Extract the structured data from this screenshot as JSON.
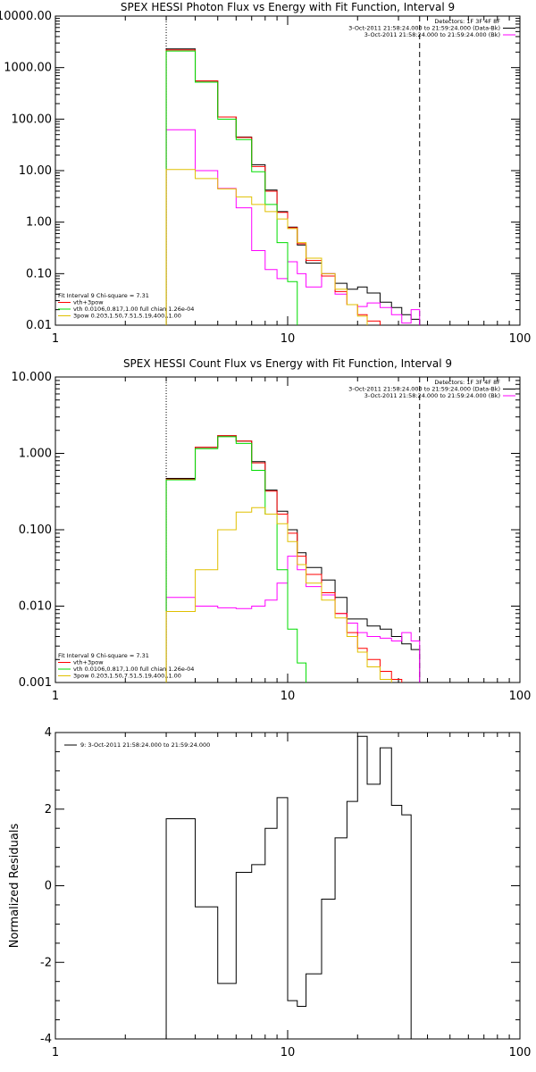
{
  "chart_data": [
    {
      "type": "line",
      "title": "SPEX HESSI Photon Flux vs Energy with Fit Function, Interval 9",
      "xscale": "log",
      "yscale": "log",
      "xlim": [
        1,
        100
      ],
      "ylim": [
        0.01,
        10000
      ],
      "x_ticks": [
        "1",
        "10",
        "100"
      ],
      "y_ticks": [
        "0.01",
        "0.10",
        "1.00",
        "10.00",
        "100.00",
        "1000.00",
        "10000.00"
      ],
      "vlines": [
        {
          "x": 3,
          "style": "dotted"
        },
        {
          "x": 37,
          "style": "dashed"
        }
      ],
      "legend_right": [
        "Detectors: 1F 3F 4F 8F",
        "3-Oct-2011 21:58:24.000 to 21:59:24.000 (Data-Bk)",
        "3-Oct-2011 21:58:24.000 to 21:59:24.000 (Bk)"
      ],
      "legend_left": [
        "Fit Interval 9   Chi-square = 7.31",
        "vth+3pow",
        "vth 0.0106,0.817,1.00  full chian 1.26e-04",
        "3pow 0.203,1.50,7.51,5.19,400.,1.00"
      ],
      "bin_edges": [
        3,
        4,
        5,
        6,
        7,
        8,
        9,
        10,
        11,
        12,
        14,
        16,
        18,
        20,
        22,
        25,
        28,
        31,
        34,
        37
      ],
      "series": [
        {
          "name": "3-Oct-2011 21:58:24.000 to 21:59:24.000 (Data-Bk)",
          "color": "#000000",
          "values": [
            2300,
            550,
            110,
            45,
            13,
            4.2,
            1.6,
            0.8,
            0.36,
            0.16,
            0.1,
            0.065,
            0.05,
            0.055,
            0.042,
            0.028,
            0.022,
            0.016,
            0.013
          ]
        },
        {
          "name": "3-Oct-2011 21:58:24.000 to 21:59:24.000 (Bk)",
          "color": "#ff00ff",
          "values": [
            62,
            10,
            4.5,
            1.9,
            0.28,
            0.12,
            0.08,
            0.17,
            0.1,
            0.055,
            0.1,
            0.04,
            0.025,
            0.023,
            0.027,
            0.022,
            0.016,
            0.011,
            0.02
          ]
        },
        {
          "name": "vth+3pow",
          "color": "#ff0000",
          "values": [
            2200,
            550,
            110,
            44,
            12,
            4,
            1.55,
            0.78,
            0.38,
            0.18,
            0.09,
            0.045,
            0.025,
            0.016,
            0.012,
            0.009,
            0.009,
            0.009,
            0.009
          ]
        },
        {
          "name": "vth",
          "color": "#00dd00",
          "values": [
            2100,
            520,
            100,
            40,
            9.5,
            2.2,
            0.4,
            0.07,
            0.009,
            0.009,
            0.009,
            0.009,
            0.009,
            0.009,
            0.009,
            0.009,
            0.009,
            0.009,
            0.009
          ]
        },
        {
          "name": "3pow",
          "color": "#e0c000",
          "values": [
            10.5,
            7,
            4.4,
            3.1,
            2.2,
            1.6,
            1.15,
            0.75,
            0.4,
            0.2,
            0.1,
            0.05,
            0.025,
            0.015,
            0.009,
            0.009,
            0.009,
            0.009,
            0.009
          ]
        }
      ]
    },
    {
      "type": "line",
      "title": "SPEX HESSI Count Flux vs Energy with Fit Function, Interval 9",
      "xscale": "log",
      "yscale": "log",
      "xlim": [
        1,
        100
      ],
      "ylim": [
        0.001,
        10
      ],
      "x_ticks": [
        "1",
        "10",
        "100"
      ],
      "y_ticks": [
        "0.001",
        "0.010",
        "0.100",
        "1.000",
        "10.000"
      ],
      "vlines": [
        {
          "x": 3,
          "style": "dotted"
        },
        {
          "x": 37,
          "style": "dashed"
        }
      ],
      "legend_right": [
        "Detectors: 1F 3F 4F 8F",
        "3-Oct-2011 21:58:24.000 to 21:59:24.000 (Data-Bk)",
        "3-Oct-2011 21:58:24.000 to 21:59:24.000 (Bk)"
      ],
      "legend_left": [
        "Fit Interval 9   Chi-square = 7.31",
        "vth+3pow",
        "vth 0.0106,0.817,1.00  full chian 1.26e-04",
        "3pow 0.203,1.50,7.51,5.19,400.,1.00"
      ],
      "bin_edges": [
        3,
        4,
        5,
        6,
        7,
        8,
        9,
        10,
        11,
        12,
        14,
        16,
        18,
        20,
        22,
        25,
        28,
        31,
        34,
        37
      ],
      "series": [
        {
          "name": "3-Oct-2011 21:58:24.000 to 21:59:24.000 (Data-Bk)",
          "color": "#000000",
          "values": [
            0.47,
            1.2,
            1.7,
            1.45,
            0.78,
            0.33,
            0.175,
            0.1,
            0.05,
            0.032,
            0.022,
            0.013,
            0.0068,
            0.0068,
            0.0055,
            0.005,
            0.004,
            0.0032,
            0.0027
          ]
        },
        {
          "name": "3-Oct-2011 21:58:24.000 to 21:59:24.000 (Bk)",
          "color": "#ff00ff",
          "values": [
            0.013,
            0.01,
            0.0095,
            0.0093,
            0.01,
            0.012,
            0.02,
            0.045,
            0.03,
            0.018,
            0.014,
            0.008,
            0.006,
            0.0045,
            0.004,
            0.0038,
            0.0035,
            0.0045,
            0.0035
          ]
        },
        {
          "name": "vth+3pow",
          "color": "#ff0000",
          "values": [
            0.46,
            1.2,
            1.7,
            1.45,
            0.75,
            0.32,
            0.16,
            0.09,
            0.045,
            0.026,
            0.015,
            0.008,
            0.0045,
            0.0028,
            0.002,
            0.0014,
            0.0011,
            0.0009,
            0.0009
          ]
        },
        {
          "name": "vth",
          "color": "#00dd00",
          "values": [
            0.45,
            1.15,
            1.65,
            1.35,
            0.6,
            0.16,
            0.03,
            0.005,
            0.0018,
            0.0009,
            0.0009,
            0.0009,
            0.0009,
            0.0009,
            0.0009,
            0.0009,
            0.0009,
            0.0009,
            0.0009
          ]
        },
        {
          "name": "3pow",
          "color": "#e0c000",
          "values": [
            0.0085,
            0.03,
            0.1,
            0.17,
            0.195,
            0.16,
            0.12,
            0.07,
            0.035,
            0.02,
            0.012,
            0.007,
            0.004,
            0.0025,
            0.0016,
            0.0011,
            0.0009,
            0.0009,
            0.0009
          ]
        }
      ]
    },
    {
      "type": "line",
      "title": "",
      "ylabel": "Normalized Residuals",
      "xscale": "log",
      "xlim": [
        1,
        100
      ],
      "ylim": [
        -4,
        4
      ],
      "x_ticks": [
        "1",
        "10",
        "100"
      ],
      "y_ticks": [
        "-4",
        "-2",
        "0",
        "2",
        "4"
      ],
      "legend_left": [
        "9:  3-Oct-2011 21:58:24.000 to 21:59:24.000"
      ],
      "bin_edges": [
        3,
        4,
        5,
        6,
        7,
        8,
        9,
        10,
        11,
        12,
        14,
        16,
        18,
        20,
        22,
        25,
        28,
        31,
        34,
        37
      ],
      "series": [
        {
          "name": "9:  3-Oct-2011 21:58:24.000 to 21:59:24.000",
          "color": "#000000",
          "values": [
            1.75,
            -0.55,
            -2.55,
            0.35,
            0.55,
            1.5,
            2.3,
            -3.0,
            -3.15,
            -2.3,
            -0.35,
            1.25,
            2.2,
            3.9,
            2.65,
            3.6,
            2.1,
            1.85,
            null
          ]
        }
      ]
    }
  ]
}
